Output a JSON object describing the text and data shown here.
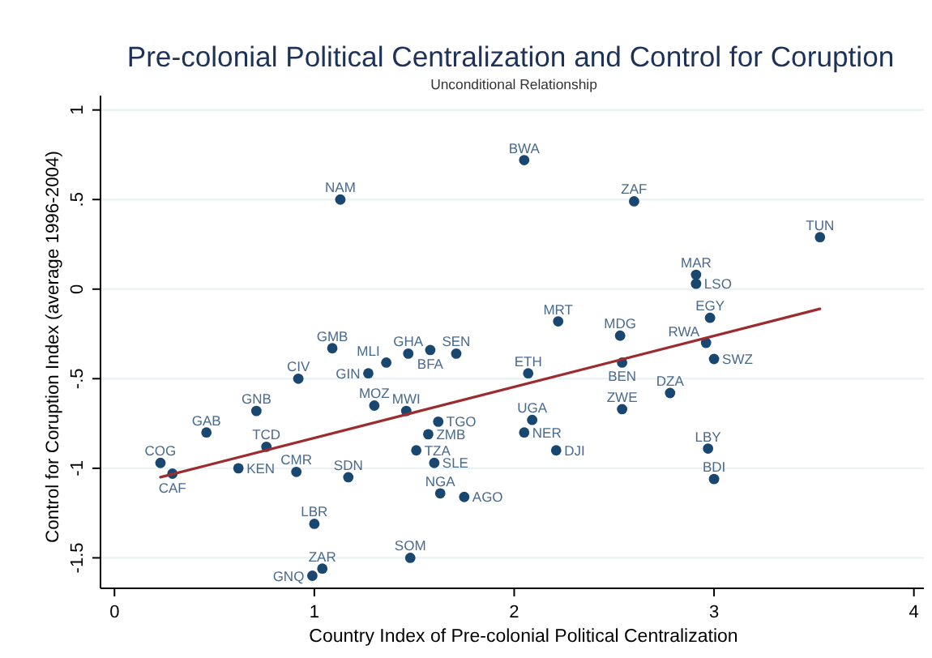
{
  "chart_data": {
    "type": "scatter",
    "title": "Pre-colonial Political Centralization and Control for Coruption",
    "subtitle": "Unconditional Relationship",
    "xlabel": "Country Index of Pre-colonial Political Centralization",
    "ylabel": "Control for Coruption Index (average 1996-2004)",
    "series": [
      {
        "color": "#1a476f",
        "x": [
          1.13,
          2.05,
          2.6,
          3.53,
          2.91,
          2.91,
          2.22,
          2.98,
          2.53,
          2.96,
          2.54,
          3.0,
          2.07,
          2.78,
          2.54,
          2.09,
          2.05,
          2.21,
          2.97,
          3.0,
          1.09,
          1.47,
          1.58,
          1.71,
          1.36,
          1.27,
          0.92,
          0.71,
          1.3,
          1.46,
          1.62,
          1.57,
          1.51,
          1.6,
          1.63,
          1.75,
          0.46,
          0.76,
          0.23,
          0.29,
          0.62,
          0.91,
          1.17,
          1.0,
          1.48,
          1.04,
          0.99
        ],
        "values": [
          0.5,
          0.72,
          0.49,
          0.29,
          0.08,
          0.03,
          -0.18,
          -0.16,
          -0.26,
          -0.3,
          -0.41,
          -0.39,
          -0.47,
          -0.58,
          -0.67,
          -0.73,
          -0.8,
          -0.9,
          -0.89,
          -1.06,
          -0.33,
          -0.36,
          -0.34,
          -0.36,
          -0.41,
          -0.47,
          -0.5,
          -0.68,
          -0.65,
          -0.68,
          -0.74,
          -0.81,
          -0.9,
          -0.97,
          -1.14,
          -1.16,
          -0.8,
          -0.88,
          -0.97,
          -1.03,
          -1.0,
          -1.02,
          -1.05,
          -1.31,
          -1.5,
          -1.56,
          -1.6
        ]
      },
      {
        "type": "line",
        "color": "#9b2d30",
        "marker": "none",
        "x": [
          0.23,
          3.53
        ],
        "values": [
          -1.05,
          -0.11
        ]
      }
    ],
    "annotations": [
      {
        "text": "NAM",
        "x": 1.13,
        "y": 0.5
      },
      {
        "text": "BWA",
        "x": 2.05,
        "y": 0.72
      },
      {
        "text": "ZAF",
        "x": 2.6,
        "y": 0.49
      },
      {
        "text": "TUN",
        "x": 3.53,
        "y": 0.29
      },
      {
        "text": "MAR",
        "x": 2.91,
        "y": 0.08
      },
      {
        "text": "LSO",
        "x": 2.91,
        "y": 0.03
      },
      {
        "text": "MRT",
        "x": 2.22,
        "y": -0.18
      },
      {
        "text": "EGY",
        "x": 2.98,
        "y": -0.16
      },
      {
        "text": "MDG",
        "x": 2.53,
        "y": -0.26
      },
      {
        "text": "RWA",
        "x": 2.96,
        "y": -0.3
      },
      {
        "text": "BEN",
        "x": 2.54,
        "y": -0.41
      },
      {
        "text": "SWZ",
        "x": 3.0,
        "y": -0.39
      },
      {
        "text": "ETH",
        "x": 2.07,
        "y": -0.47
      },
      {
        "text": "DZA",
        "x": 2.78,
        "y": -0.58
      },
      {
        "text": "ZWE",
        "x": 2.54,
        "y": -0.67
      },
      {
        "text": "UGA",
        "x": 2.09,
        "y": -0.73
      },
      {
        "text": "NER",
        "x": 2.05,
        "y": -0.8
      },
      {
        "text": "DJI",
        "x": 2.21,
        "y": -0.9
      },
      {
        "text": "LBY",
        "x": 2.97,
        "y": -0.89
      },
      {
        "text": "BDI",
        "x": 3.0,
        "y": -1.06
      },
      {
        "text": "GMB",
        "x": 1.09,
        "y": -0.33
      },
      {
        "text": "GHA",
        "x": 1.47,
        "y": -0.36
      },
      {
        "text": "BFA",
        "x": 1.58,
        "y": -0.34
      },
      {
        "text": "SEN",
        "x": 1.71,
        "y": -0.36
      },
      {
        "text": "MLI",
        "x": 1.36,
        "y": -0.41
      },
      {
        "text": "GIN",
        "x": 1.27,
        "y": -0.47
      },
      {
        "text": "CIV",
        "x": 0.92,
        "y": -0.5
      },
      {
        "text": "GNB",
        "x": 0.71,
        "y": -0.68
      },
      {
        "text": "MOZ",
        "x": 1.3,
        "y": -0.65
      },
      {
        "text": "MWI",
        "x": 1.46,
        "y": -0.68
      },
      {
        "text": "TGO",
        "x": 1.62,
        "y": -0.74
      },
      {
        "text": "ZMB",
        "x": 1.57,
        "y": -0.81
      },
      {
        "text": "TZA",
        "x": 1.51,
        "y": -0.9
      },
      {
        "text": "SLE",
        "x": 1.6,
        "y": -0.97
      },
      {
        "text": "NGA",
        "x": 1.63,
        "y": -1.14
      },
      {
        "text": "AGO",
        "x": 1.75,
        "y": -1.16
      },
      {
        "text": "GAB",
        "x": 0.46,
        "y": -0.8
      },
      {
        "text": "TCD",
        "x": 0.76,
        "y": -0.88
      },
      {
        "text": "COG",
        "x": 0.23,
        "y": -0.97
      },
      {
        "text": "CAF",
        "x": 0.29,
        "y": -1.03
      },
      {
        "text": "KEN",
        "x": 0.62,
        "y": -1.0
      },
      {
        "text": "CMR",
        "x": 0.91,
        "y": -1.02
      },
      {
        "text": "SDN",
        "x": 1.17,
        "y": -1.05
      },
      {
        "text": "LBR",
        "x": 1.0,
        "y": -1.31
      },
      {
        "text": "SOM",
        "x": 1.48,
        "y": -1.5
      },
      {
        "text": "ZAR",
        "x": 1.04,
        "y": -1.56
      },
      {
        "text": "GNQ",
        "x": 0.99,
        "y": -1.6
      }
    ],
    "xlim": [
      -0.07,
      4.05
    ],
    "ylim": [
      -1.67,
      1.08
    ],
    "xticks": [
      0,
      1,
      2,
      3,
      4
    ],
    "yticks": [
      {
        "value": -1.5,
        "label": "-1.5"
      },
      {
        "value": -1,
        "label": "-1"
      },
      {
        "value": -0.5,
        "label": "-.5"
      },
      0,
      {
        "value": 0.5,
        "label": ".5"
      },
      1
    ],
    "grid": "y",
    "marker": "circle",
    "line_style": "solid"
  }
}
